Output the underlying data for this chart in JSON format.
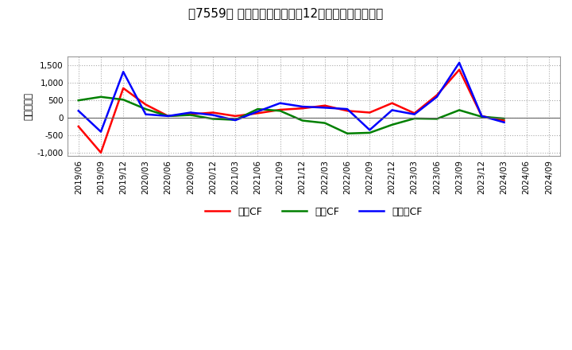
{
  "title": "［7559］ キャッシュフローの12か月移動合計の推移",
  "ylabel": "（百万円）",
  "background_color": "#ffffff",
  "plot_bg_color": "#ffffff",
  "grid_color": "#aaaaaa",
  "x_labels": [
    "2019/06",
    "2019/09",
    "2019/12",
    "2020/03",
    "2020/06",
    "2020/09",
    "2020/12",
    "2021/03",
    "2021/06",
    "2021/09",
    "2021/12",
    "2022/03",
    "2022/06",
    "2022/09",
    "2022/12",
    "2023/03",
    "2023/06",
    "2023/09",
    "2023/12",
    "2024/03",
    "2024/06",
    "2024/09"
  ],
  "eigyo_cf": [
    -250,
    -1000,
    850,
    380,
    50,
    100,
    150,
    50,
    130,
    230,
    270,
    350,
    200,
    150,
    420,
    130,
    650,
    1380,
    50,
    -80,
    null,
    null
  ],
  "toshi_cf": [
    500,
    600,
    520,
    250,
    50,
    80,
    -30,
    -60,
    250,
    200,
    -80,
    -150,
    -450,
    -430,
    -200,
    -20,
    -30,
    220,
    30,
    -20,
    null,
    null
  ],
  "free_cf": [
    200,
    -400,
    1320,
    100,
    50,
    150,
    80,
    -70,
    180,
    420,
    320,
    290,
    250,
    -350,
    220,
    100,
    600,
    1580,
    50,
    -130,
    null,
    null
  ],
  "eigyo_color": "#ff0000",
  "toshi_color": "#008000",
  "free_color": "#0000ff",
  "ylim": [
    -1100,
    1750
  ],
  "yticks": [
    -1000,
    -500,
    0,
    500,
    1000,
    1500
  ],
  "line_width": 1.8,
  "legend_labels": [
    "営業CF",
    "投資CF",
    "フリーCF"
  ]
}
